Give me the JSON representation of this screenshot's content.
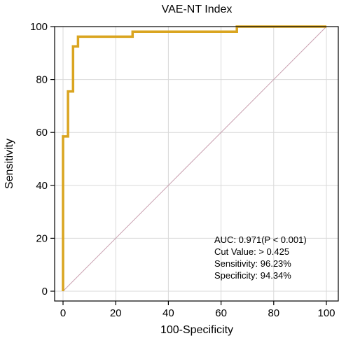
{
  "chart_data": {
    "type": "line",
    "title": "VAE-NT Index",
    "xlabel": "100-Specificity",
    "ylabel": "Sensitivity",
    "xlim": [
      0,
      100
    ],
    "ylim": [
      0,
      100
    ],
    "xticks": [
      0,
      20,
      40,
      60,
      80,
      100
    ],
    "yticks": [
      0,
      20,
      40,
      60,
      80,
      100
    ],
    "grid": true,
    "roc_color": "#DAA520",
    "reference_color": "#c9a0b0",
    "series": [
      {
        "x": [
          0,
          0,
          1.9,
          1.9,
          3.8,
          3.8,
          5.7,
          5.7,
          26.4,
          26.4,
          66,
          66,
          100
        ],
        "y": [
          0,
          58.5,
          58.5,
          75.5,
          75.5,
          92.5,
          92.5,
          96.2,
          96.2,
          98.1,
          98.1,
          100,
          100
        ]
      }
    ],
    "reference_line": {
      "x": [
        0,
        100
      ],
      "y": [
        0,
        100
      ]
    },
    "annotations": [
      "AUC: 0.971(P < 0.001)",
      "Cut Value: > 0.425",
      "Sensitivity: 96.23%",
      "Specificity: 94.34%"
    ]
  }
}
